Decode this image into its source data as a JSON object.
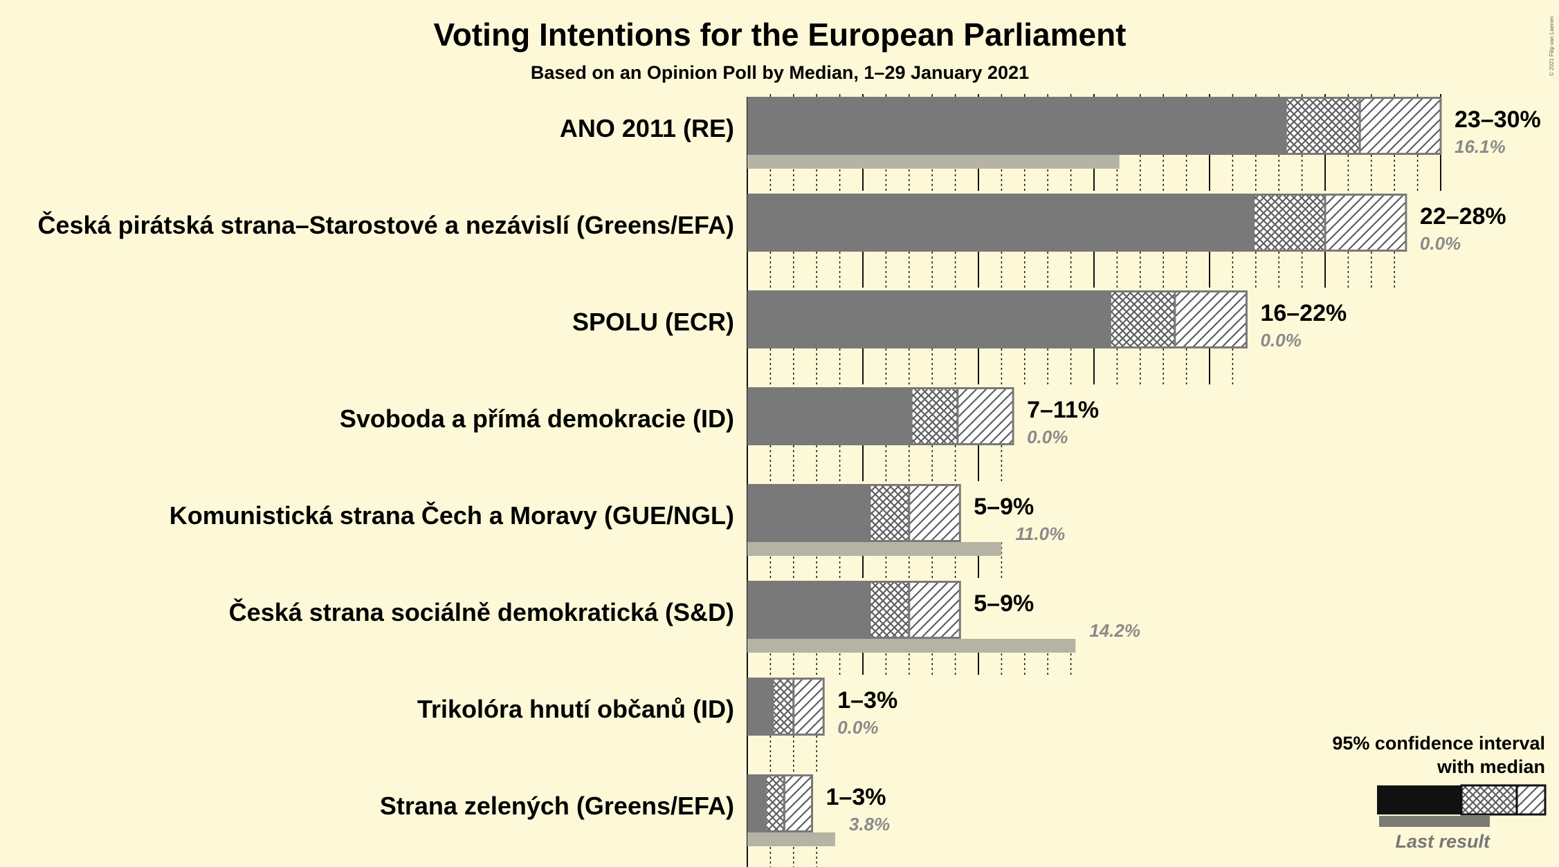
{
  "chart_data": {
    "type": "bar",
    "title": "Voting Intentions for the European Parliament",
    "subtitle": "Based on an Opinion Poll by Median, 1–29 January 2021",
    "copyright": "© 2021 Filip van Laenen",
    "unit": "%",
    "parties": [
      {
        "name": "ANO 2011 (RE)",
        "range_label": "23–30%",
        "last_label": "16.1%",
        "last": 16.1,
        "lo": 23.3,
        "q_lo": 23.3,
        "median": 26.5,
        "q_hi": 26.5,
        "hi": 30.0
      },
      {
        "name": "Česká pirátská strana–Starostové a nezávislí (Greens/EFA)",
        "range_label": "22–28%",
        "last_label": "0.0%",
        "last": 0.0,
        "lo": 21.9,
        "q_lo": 21.9,
        "median": 25.0,
        "q_hi": 25.0,
        "hi": 28.5
      },
      {
        "name": "SPOLU (ECR)",
        "range_label": "16–22%",
        "last_label": "0.0%",
        "last": 0.0,
        "lo": 15.7,
        "q_lo": 15.7,
        "median": 18.5,
        "q_hi": 18.5,
        "hi": 21.6
      },
      {
        "name": "Svoboda a přímá demokracie (ID)",
        "range_label": "7–11%",
        "last_label": "0.0%",
        "last": 0.0,
        "lo": 7.1,
        "q_lo": 7.1,
        "median": 9.1,
        "q_hi": 9.1,
        "hi": 11.5
      },
      {
        "name": "Komunistická strana Čech a Moravy (GUE/NGL)",
        "range_label": "5–9%",
        "last_label": "11.0%",
        "last": 11.0,
        "lo": 5.3,
        "q_lo": 5.3,
        "median": 7.0,
        "q_hi": 7.0,
        "hi": 9.2
      },
      {
        "name": "Česká strana sociálně demokratická (S&D)",
        "range_label": "5–9%",
        "last_label": "14.2%",
        "last": 14.2,
        "lo": 5.3,
        "q_lo": 5.3,
        "median": 7.0,
        "q_hi": 7.0,
        "hi": 9.2
      },
      {
        "name": "Trikolóra hnutí občanů (ID)",
        "range_label": "1–3%",
        "last_label": "0.0%",
        "last": 0.0,
        "lo": 1.1,
        "q_lo": 1.1,
        "median": 2.0,
        "q_hi": 2.0,
        "hi": 3.3
      },
      {
        "name": "Strana zelených (Greens/EFA)",
        "range_label": "1–3%",
        "last_label": "3.8%",
        "last": 3.8,
        "lo": 0.8,
        "q_lo": 0.8,
        "median": 1.6,
        "q_hi": 1.6,
        "hi": 2.8
      }
    ],
    "gridlines": {
      "major_every": 5,
      "minor_every": 1,
      "style": "vertical",
      "shown": true
    },
    "legend": {
      "title_line1": "95% confidence interval",
      "title_line2": "with median",
      "last_result": "Last result",
      "placement": "bottom-right"
    },
    "colors": {
      "background": "#fdf9d8",
      "bar": "#797979",
      "ci_stroke": "#797979",
      "last_result": "#b5b3a4",
      "legend_bar": "#111111",
      "grid": "#111111"
    }
  }
}
